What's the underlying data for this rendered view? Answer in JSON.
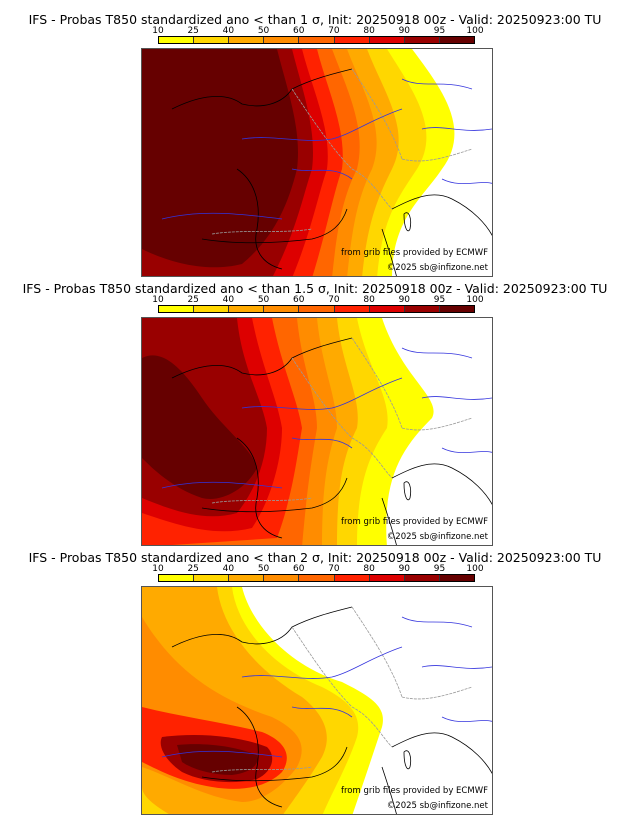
{
  "colorbar": {
    "ticks": [
      "10",
      "25",
      "40",
      "50",
      "60",
      "70",
      "80",
      "90",
      "95",
      "100"
    ],
    "colors": [
      "#ffff00",
      "#ffd700",
      "#ffaa00",
      "#ff8c00",
      "#ff6600",
      "#ff2200",
      "#dd0000",
      "#990000",
      "#660000"
    ]
  },
  "panels": [
    {
      "title": "IFS - Probas T850  standardized ano < than 1 σ, Init: 20250918 00z - Valid: 20250923:00 TU",
      "sigma": "1"
    },
    {
      "title": "IFS - Probas T850  standardized ano < than 1.5 σ, Init: 20250918 00z - Valid: 20250923:00 TU",
      "sigma": "1.5"
    },
    {
      "title": "IFS - Probas T850  standardized ano < than 2 σ, Init: 20250918 00z - Valid: 20250923:00 TU",
      "sigma": "2"
    }
  ],
  "credits": {
    "source": "from grib files provided by ECMWF",
    "copyright": "©2025 sb@infizone.net"
  }
}
